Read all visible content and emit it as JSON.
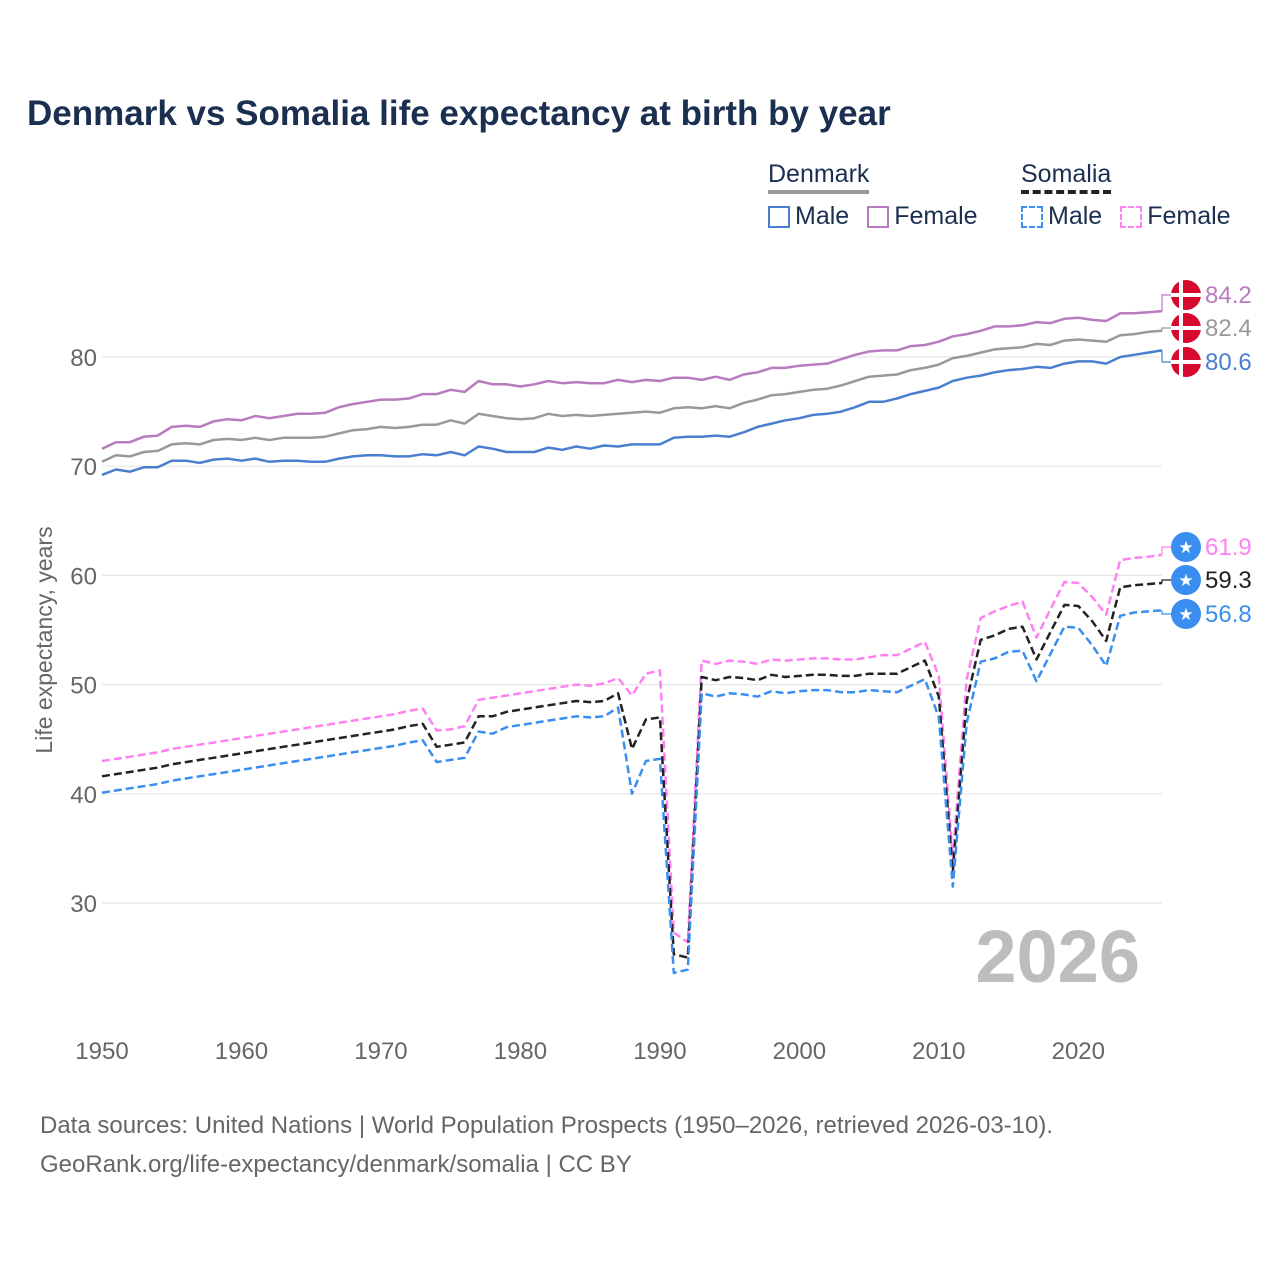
{
  "title": "Denmark vs Somalia life expectancy at birth by year",
  "legend": {
    "groups": [
      {
        "name": "Denmark",
        "style": "solid",
        "head_color": "#999999",
        "items": [
          {
            "label": "Male",
            "color": "#4a7fcf"
          },
          {
            "label": "Female",
            "color": "#b87bbf"
          }
        ]
      },
      {
        "name": "Somalia",
        "style": "dashed",
        "head_color": "#222222",
        "items": [
          {
            "label": "Male",
            "color": "#3a8ef0"
          },
          {
            "label": "Female",
            "color": "#ff80f0"
          }
        ]
      }
    ]
  },
  "watermark_year": "2026",
  "source_lines": [
    "Data sources: United Nations | World Population Prospects (1950–2026, retrieved 2026-03-10).",
    "GeoRank.org/life-expectancy/denmark/somalia | CC BY"
  ],
  "chart_data": {
    "type": "line",
    "title": "Denmark vs Somalia life expectancy at birth by year",
    "xlabel": "",
    "ylabel": "Life expectancy, years",
    "xlim": [
      1950,
      2026
    ],
    "ylim": [
      20,
      86
    ],
    "x_ticks": [
      1950,
      1960,
      1970,
      1980,
      1990,
      2000,
      2010,
      2020
    ],
    "y_ticks": [
      30,
      40,
      50,
      60,
      70,
      80
    ],
    "grid": true,
    "legend_position": "top-right",
    "x_start": 1950,
    "series": [
      {
        "name": "Denmark Female",
        "country": "Denmark",
        "color": "#b87bbf",
        "dashed": false,
        "end_label": "84.2",
        "marker": "denmark-flag",
        "values": [
          71.6,
          72.2,
          72.2,
          72.7,
          72.8,
          73.6,
          73.7,
          73.6,
          74.1,
          74.3,
          74.2,
          74.6,
          74.4,
          74.6,
          74.8,
          74.8,
          74.9,
          75.4,
          75.7,
          75.9,
          76.1,
          76.1,
          76.2,
          76.6,
          76.6,
          77.0,
          76.8,
          77.8,
          77.5,
          77.5,
          77.3,
          77.5,
          77.8,
          77.6,
          77.7,
          77.6,
          77.6,
          77.9,
          77.7,
          77.9,
          77.8,
          78.1,
          78.1,
          77.9,
          78.2,
          77.9,
          78.4,
          78.6,
          79.0,
          79.0,
          79.2,
          79.3,
          79.4,
          79.8,
          80.2,
          80.5,
          80.6,
          80.6,
          81.0,
          81.1,
          81.4,
          81.9,
          82.1,
          82.4,
          82.8,
          82.8,
          82.9,
          83.2,
          83.1,
          83.5,
          83.6,
          83.4,
          83.3,
          84.0,
          84.0,
          84.1,
          84.2
        ]
      },
      {
        "name": "Denmark Total",
        "country": "Denmark",
        "color": "#999999",
        "dashed": false,
        "end_label": "82.4",
        "marker": "denmark-flag",
        "values": [
          70.4,
          71.0,
          70.9,
          71.3,
          71.4,
          72.0,
          72.1,
          72.0,
          72.4,
          72.5,
          72.4,
          72.6,
          72.4,
          72.6,
          72.6,
          72.6,
          72.7,
          73.0,
          73.3,
          73.4,
          73.6,
          73.5,
          73.6,
          73.8,
          73.8,
          74.2,
          73.9,
          74.8,
          74.6,
          74.4,
          74.3,
          74.4,
          74.8,
          74.6,
          74.7,
          74.6,
          74.7,
          74.8,
          74.9,
          75.0,
          74.9,
          75.3,
          75.4,
          75.3,
          75.5,
          75.3,
          75.8,
          76.1,
          76.5,
          76.6,
          76.8,
          77.0,
          77.1,
          77.4,
          77.8,
          78.2,
          78.3,
          78.4,
          78.8,
          79.0,
          79.3,
          79.9,
          80.1,
          80.4,
          80.7,
          80.8,
          80.9,
          81.2,
          81.1,
          81.5,
          81.6,
          81.5,
          81.4,
          82.0,
          82.1,
          82.3,
          82.4
        ]
      },
      {
        "name": "Denmark Male",
        "country": "Denmark",
        "color": "#4a7fcf",
        "dashed": false,
        "end_label": "80.6",
        "marker": "denmark-flag",
        "values": [
          69.2,
          69.7,
          69.5,
          69.9,
          69.9,
          70.5,
          70.5,
          70.3,
          70.6,
          70.7,
          70.5,
          70.7,
          70.4,
          70.5,
          70.5,
          70.4,
          70.4,
          70.7,
          70.9,
          71.0,
          71.0,
          70.9,
          70.9,
          71.1,
          71.0,
          71.3,
          71.0,
          71.8,
          71.6,
          71.3,
          71.3,
          71.3,
          71.7,
          71.5,
          71.8,
          71.6,
          71.9,
          71.8,
          72.0,
          72.0,
          72.0,
          72.6,
          72.7,
          72.7,
          72.8,
          72.7,
          73.1,
          73.6,
          73.9,
          74.2,
          74.4,
          74.7,
          74.8,
          75.0,
          75.4,
          75.9,
          75.9,
          76.2,
          76.6,
          76.9,
          77.2,
          77.8,
          78.1,
          78.3,
          78.6,
          78.8,
          78.9,
          79.1,
          79.0,
          79.4,
          79.6,
          79.6,
          79.4,
          80.0,
          80.2,
          80.4,
          80.6
        ]
      },
      {
        "name": "Somalia Female",
        "country": "Somalia",
        "color": "#ff80f0",
        "dashed": true,
        "end_label": "61.9",
        "marker": "somalia-flag",
        "values": [
          43.0,
          43.2,
          43.4,
          43.6,
          43.8,
          44.1,
          44.3,
          44.5,
          44.7,
          44.9,
          45.1,
          45.3,
          45.5,
          45.7,
          45.9,
          46.1,
          46.3,
          46.5,
          46.7,
          46.9,
          47.1,
          47.3,
          47.6,
          47.8,
          45.8,
          45.9,
          46.2,
          48.6,
          48.8,
          49.0,
          49.2,
          49.4,
          49.6,
          49.8,
          50.0,
          49.9,
          50.1,
          50.6,
          49.0,
          51.0,
          51.3,
          27.3,
          26.4,
          52.2,
          51.9,
          52.2,
          52.1,
          51.9,
          52.3,
          52.2,
          52.3,
          52.4,
          52.4,
          52.3,
          52.3,
          52.5,
          52.7,
          52.7,
          53.3,
          53.9,
          50.8,
          34.2,
          50.5,
          56.1,
          56.7,
          57.2,
          57.6,
          54.3,
          56.9,
          59.4,
          59.3,
          58.0,
          56.4,
          61.4,
          61.6,
          61.7,
          61.9
        ]
      },
      {
        "name": "Somalia Total",
        "country": "Somalia",
        "color": "#222222",
        "dashed": true,
        "end_label": "59.3",
        "marker": "somalia-flag",
        "values": [
          41.6,
          41.8,
          42.0,
          42.2,
          42.4,
          42.7,
          42.9,
          43.1,
          43.3,
          43.5,
          43.7,
          43.9,
          44.1,
          44.3,
          44.5,
          44.7,
          44.9,
          45.1,
          45.3,
          45.5,
          45.7,
          45.9,
          46.2,
          46.4,
          44.3,
          44.5,
          44.7,
          47.1,
          47.1,
          47.5,
          47.7,
          47.9,
          48.1,
          48.3,
          48.5,
          48.4,
          48.5,
          49.2,
          44.1,
          46.8,
          47.0,
          25.3,
          25.0,
          50.7,
          50.4,
          50.7,
          50.6,
          50.4,
          50.9,
          50.7,
          50.8,
          50.9,
          50.9,
          50.8,
          50.8,
          51.0,
          51.0,
          51.0,
          51.6,
          52.2,
          48.9,
          32.9,
          48.5,
          54.1,
          54.5,
          55.1,
          55.3,
          52.3,
          54.8,
          57.3,
          57.2,
          55.8,
          54.0,
          58.9,
          59.1,
          59.2,
          59.3
        ]
      },
      {
        "name": "Somalia Male",
        "country": "Somalia",
        "color": "#3a8ef0",
        "dashed": true,
        "end_label": "56.8",
        "marker": "somalia-flag",
        "values": [
          40.1,
          40.3,
          40.5,
          40.7,
          40.9,
          41.2,
          41.4,
          41.6,
          41.8,
          42.0,
          42.2,
          42.4,
          42.6,
          42.8,
          43.0,
          43.2,
          43.4,
          43.6,
          43.8,
          44.0,
          44.2,
          44.4,
          44.7,
          44.9,
          42.9,
          43.1,
          43.3,
          45.7,
          45.5,
          46.1,
          46.3,
          46.5,
          46.7,
          46.9,
          47.1,
          47.0,
          47.1,
          47.9,
          40.0,
          43.0,
          43.2,
          23.6,
          23.9,
          49.2,
          48.9,
          49.2,
          49.1,
          48.9,
          49.4,
          49.2,
          49.4,
          49.5,
          49.5,
          49.3,
          49.3,
          49.5,
          49.4,
          49.3,
          49.9,
          50.5,
          47.0,
          31.5,
          46.5,
          52.1,
          52.4,
          53.0,
          53.1,
          50.3,
          52.8,
          55.3,
          55.2,
          53.6,
          51.7,
          56.3,
          56.6,
          56.7,
          56.8
        ]
      }
    ]
  }
}
